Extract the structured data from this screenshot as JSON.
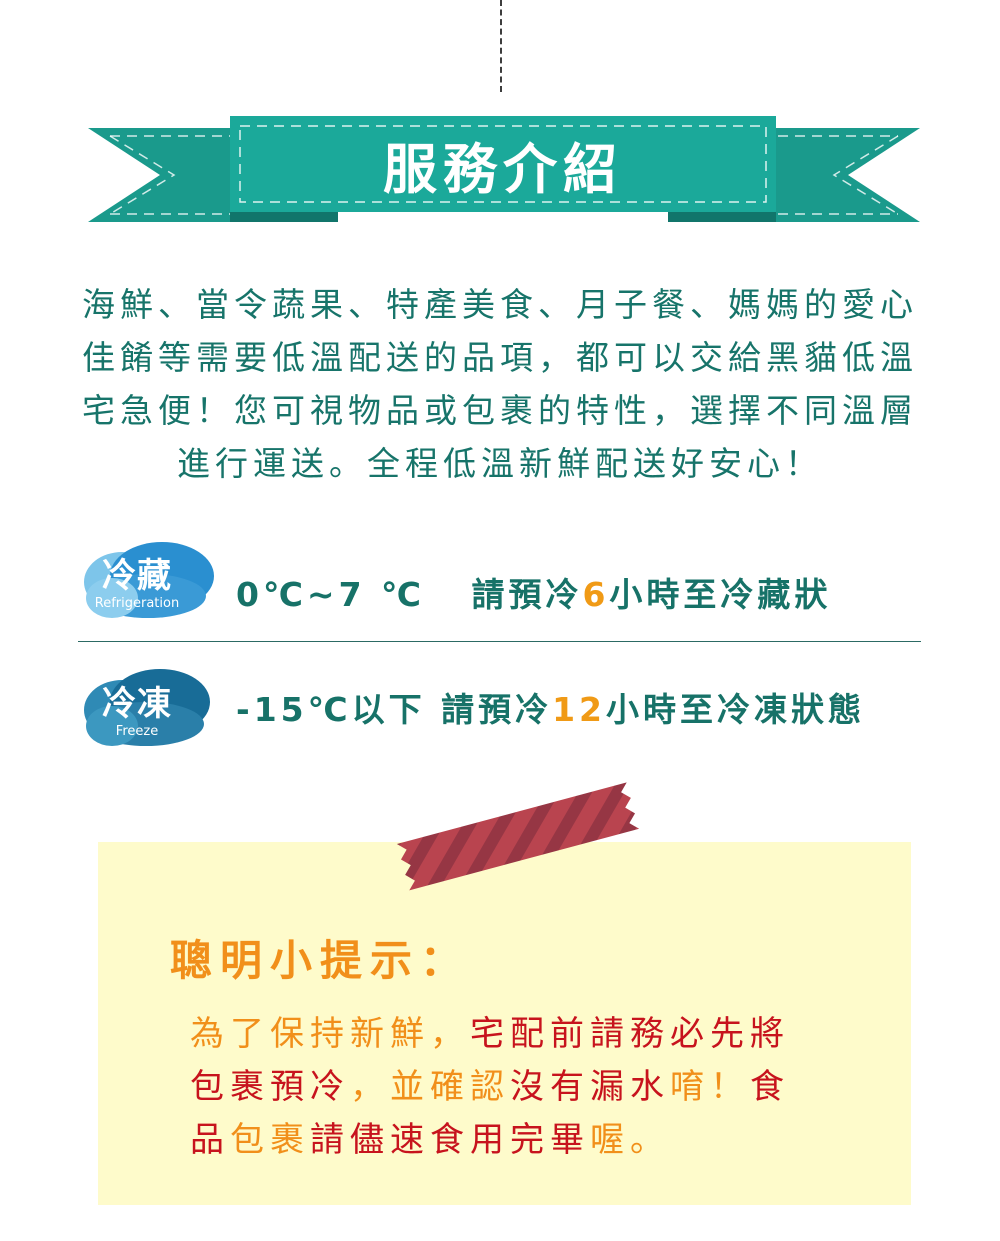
{
  "banner": {
    "title": "服務介紹"
  },
  "intro": {
    "lines": [
      "海鮮、當令蔬果、特產美食、月子餐、媽媽的愛心",
      "佳餚等需要低溫配送的品項，都可以交給黑貓低溫",
      "宅急便！您可視物品或包裹的特性，選擇不同溫層",
      "進行運送。全程低溫新鮮配送好安心！"
    ]
  },
  "storage": {
    "refrigeration": {
      "badge": "冷藏",
      "badge_en": "Refrigeration",
      "temp": "0℃~7 ℃",
      "pre": "請預冷",
      "hours": "6",
      "post": "小時至冷藏狀",
      "badge_color": "#2a8fd0"
    },
    "freeze": {
      "badge": "冷凍",
      "badge_en": "Freeze",
      "temp": "-15℃以下",
      "pre": "請預冷",
      "hours": "12",
      "post": "小時至冷凍狀態",
      "badge_color": "#1a6e9b"
    }
  },
  "tips": {
    "title": "聰明小提示：",
    "line1": {
      "a": "為了保持新鮮，",
      "b": "宅配前請務必先將"
    },
    "line2": {
      "a": "包裹預冷",
      "b": "，並確認",
      "c": "沒有漏水",
      "d": "唷！",
      "e": "食"
    },
    "line3": {
      "a": "品",
      "b": "包裹",
      "c": "請",
      "d": "儘速食用完畢",
      "e": "喔。"
    }
  },
  "colors": {
    "teal": "#17746a",
    "banner": "#1ba99a",
    "orange": "#f18f1a",
    "red": "#c7131d",
    "note_bg": "#fefbcb",
    "tape": "#b34551"
  }
}
